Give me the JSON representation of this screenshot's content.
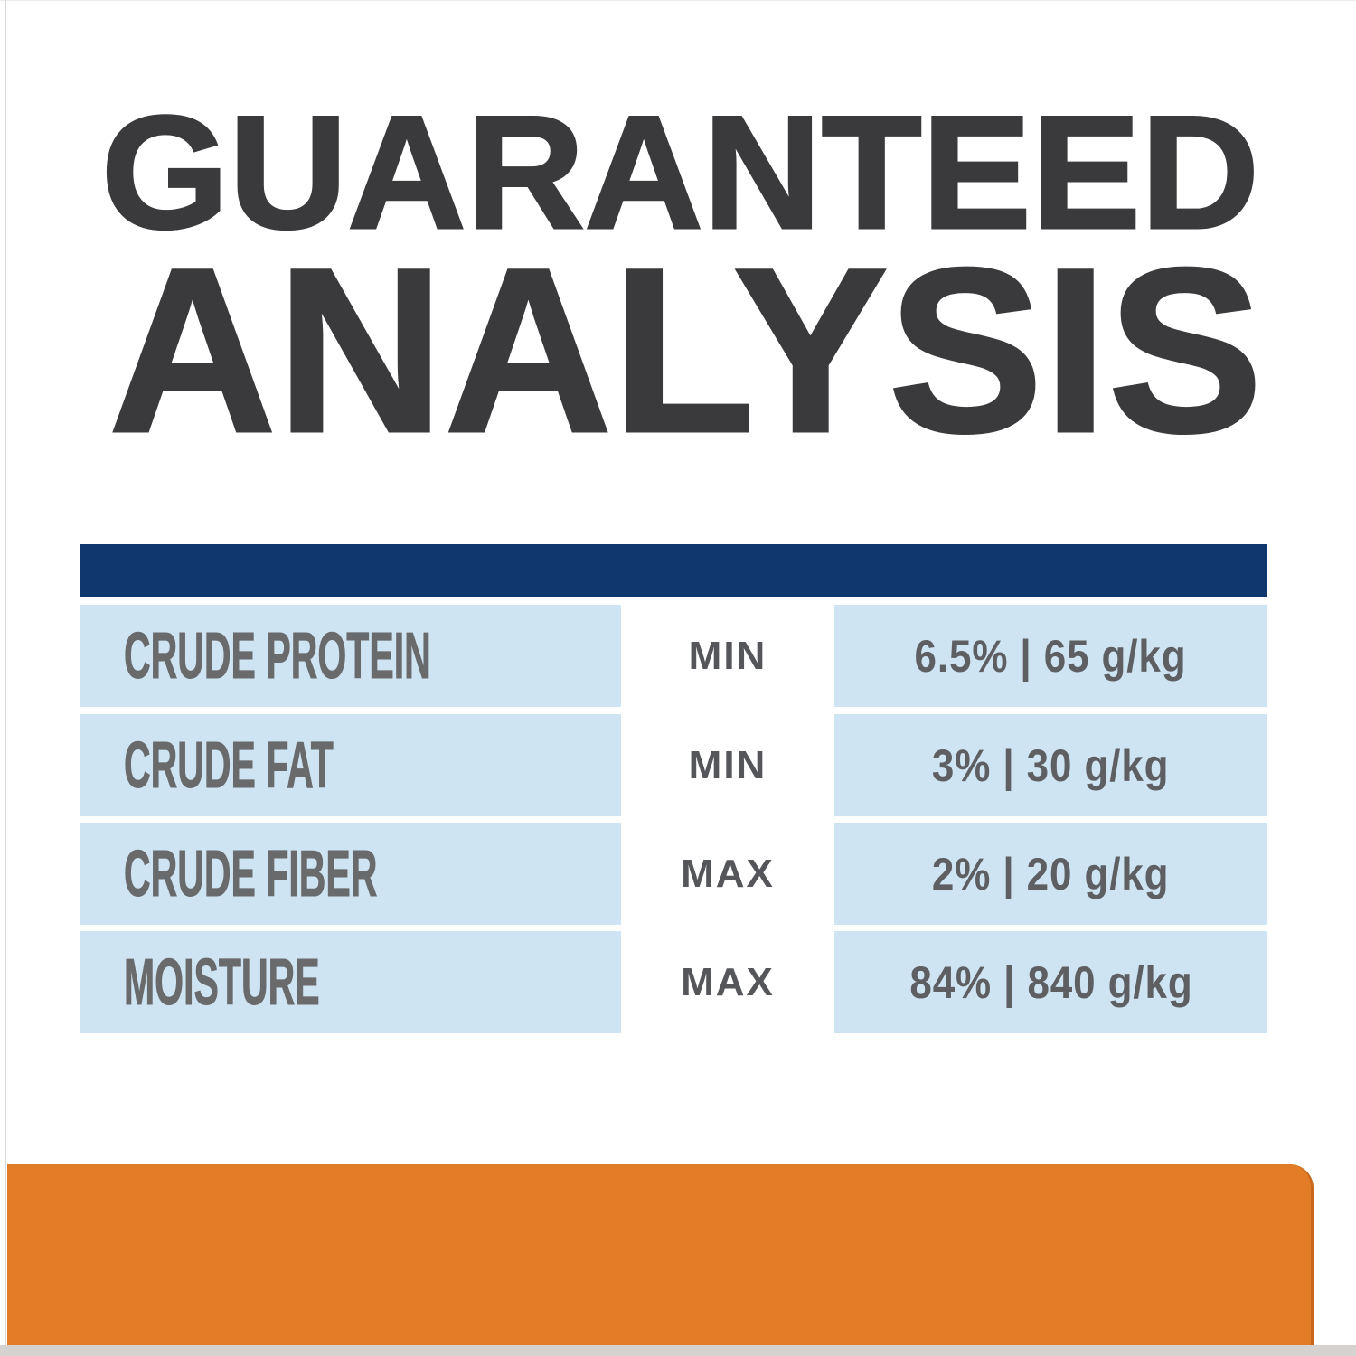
{
  "title": {
    "line1": "GUARANTEED",
    "line2": "ANALYSIS"
  },
  "table": {
    "rows": [
      {
        "label": "CRUDE PROTEIN",
        "qualifier": "MIN",
        "value": "6.5% | 65 g/kg"
      },
      {
        "label": "CRUDE FAT",
        "qualifier": "MIN",
        "value": "3% | 30 g/kg"
      },
      {
        "label": "CRUDE FIBER",
        "qualifier": "MAX",
        "value": "2% | 20 g/kg"
      },
      {
        "label": "MOISTURE",
        "qualifier": "MAX",
        "value": "84% | 840 g/kg"
      }
    ]
  },
  "colors": {
    "heading_text": "#3a3a3c",
    "header_bar_navy": "#11386e",
    "row_background_blue": "#cfe4f2",
    "label_text_gray": "#696a6c",
    "qualifier_text_gray": "#55565a",
    "value_text_gray": "#5e5f63",
    "accent_bar_orange": "#e27c26",
    "bottom_strip_gray": "#d5d2cf"
  }
}
